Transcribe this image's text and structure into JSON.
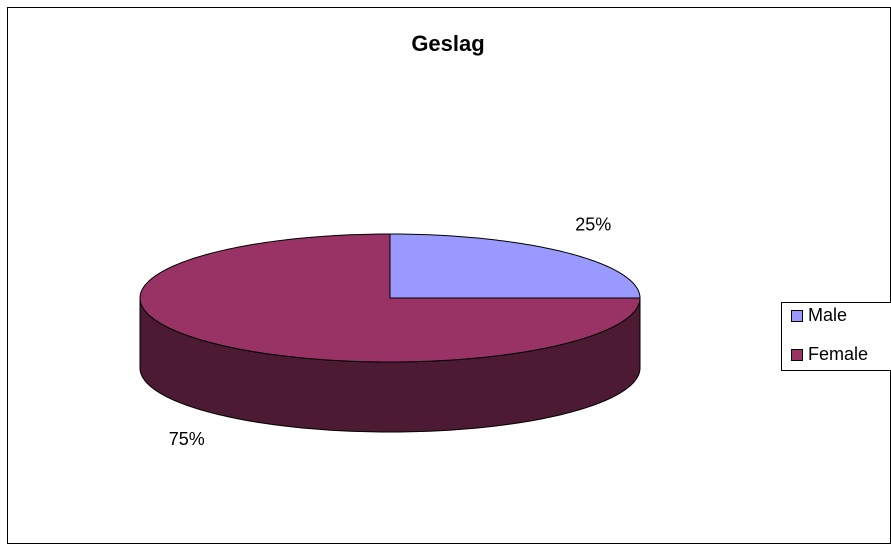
{
  "chart_data": {
    "type": "pie",
    "title": "Geslag",
    "categories": [
      "Male",
      "Female"
    ],
    "values": [
      25,
      75
    ],
    "value_labels": [
      "25%",
      "75%"
    ],
    "colors": [
      "#9999ff",
      "#993366"
    ],
    "legend": "right",
    "three_d": true
  }
}
